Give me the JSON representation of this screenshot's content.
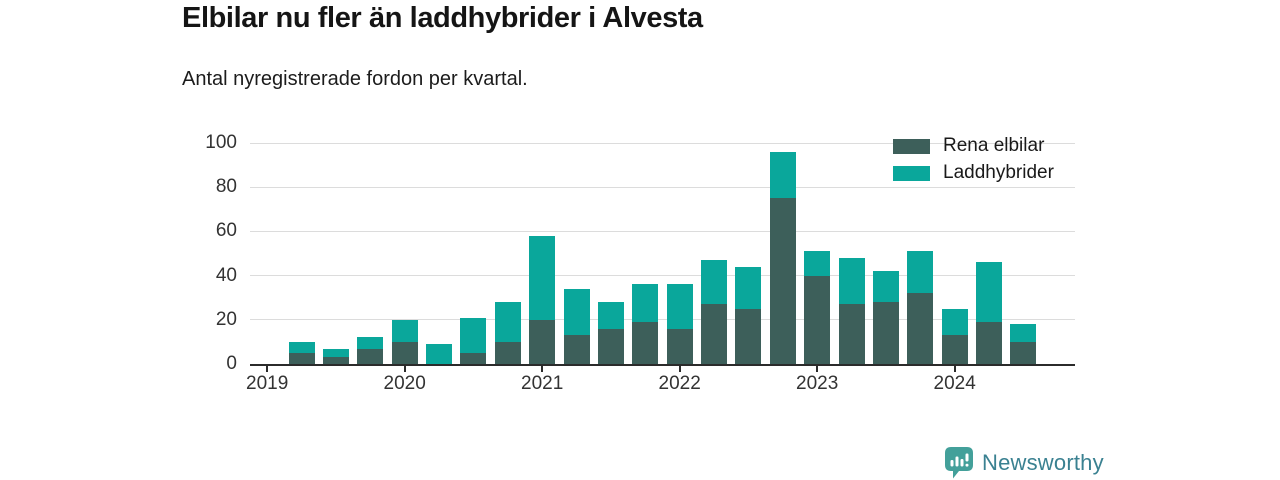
{
  "header": {
    "title": "Elbilar nu fler än laddhybrider i Alvesta",
    "subtitle": "Antal nyregistrerade fordon per kvartal."
  },
  "legend": {
    "items": [
      {
        "label": "Rena elbilar",
        "color": "#3d5f5a"
      },
      {
        "label": "Laddhybrider",
        "color": "#0aa79b"
      }
    ]
  },
  "chart_data": {
    "type": "bar",
    "stacked": true,
    "title": "Elbilar nu fler än laddhybrider i Alvesta",
    "subtitle": "Antal nyregistrerade fordon per kvartal.",
    "categories": [
      "2019 Q1",
      "2019 Q2",
      "2019 Q3",
      "2019 Q4",
      "2020 Q1",
      "2020 Q2",
      "2020 Q3",
      "2020 Q4",
      "2021 Q1",
      "2021 Q2",
      "2021 Q3",
      "2021 Q4",
      "2022 Q1",
      "2022 Q2",
      "2022 Q3",
      "2022 Q4",
      "2023 Q1",
      "2023 Q2",
      "2023 Q3",
      "2023 Q4",
      "2024 Q1",
      "2024 Q2",
      "2024 Q3"
    ],
    "series": [
      {
        "name": "Rena elbilar",
        "color": "#3d5f5a",
        "values": [
          0,
          5,
          3,
          7,
          10,
          0,
          5,
          10,
          20,
          13,
          16,
          19,
          16,
          27,
          25,
          75,
          40,
          27,
          28,
          32,
          13,
          19,
          10
        ]
      },
      {
        "name": "Laddhybrider",
        "color": "#0aa79b",
        "values": [
          0,
          5,
          4,
          5,
          10,
          9,
          16,
          18,
          38,
          21,
          12,
          17,
          20,
          20,
          19,
          21,
          11,
          21,
          14,
          19,
          12,
          27,
          8
        ]
      }
    ],
    "ylim": [
      0,
      100
    ],
    "yticks": [
      0,
      20,
      40,
      60,
      80,
      100
    ],
    "xticks": [
      {
        "label": "2019",
        "index": 0
      },
      {
        "label": "2020",
        "index": 4
      },
      {
        "label": "2021",
        "index": 8
      },
      {
        "label": "2022",
        "index": 12
      },
      {
        "label": "2023",
        "index": 16
      },
      {
        "label": "2024",
        "index": 20
      }
    ],
    "n_slots": 24,
    "grid": true,
    "legend_position": "top-right",
    "colors": {
      "gridline": "#dcdcdc",
      "axis": "#2b2b2b",
      "axis_text": "#333333"
    }
  },
  "footer": {
    "brand": "Newsworthy",
    "logo_icon": "bar-chart-pin-icon",
    "brand_color": "#3a8191",
    "badge_color": "#43a09a"
  }
}
